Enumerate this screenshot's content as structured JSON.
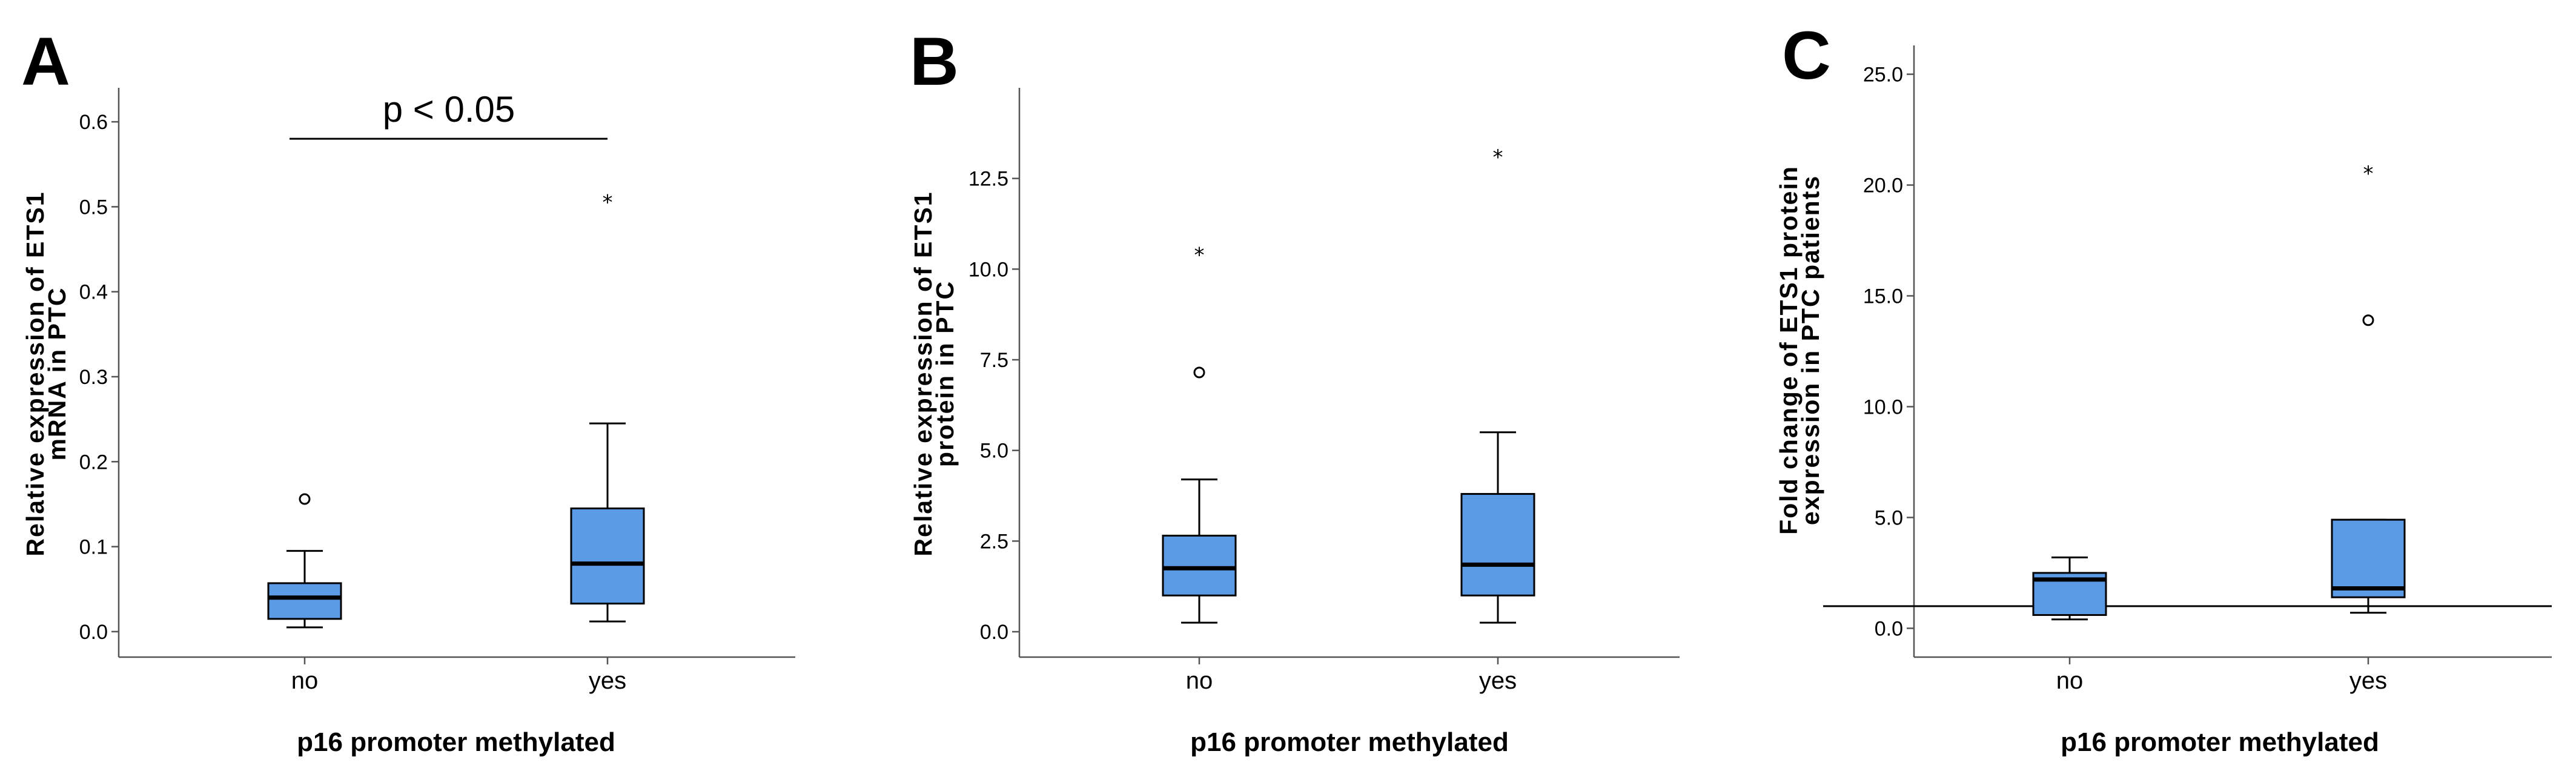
{
  "chart_data": [
    {
      "type": "box",
      "panel_letter": "A",
      "ylabel_lines": [
        "Relative expression of ETS1",
        "mRNA in PTC"
      ],
      "xlabel": "p16 promoter methylated",
      "categories": [
        "no",
        "yes"
      ],
      "ylim": [
        -0.03,
        0.64
      ],
      "yticks": [
        0.0,
        0.1,
        0.2,
        0.3,
        0.4,
        0.5,
        0.6
      ],
      "yticklabels": [
        "0.0",
        "0.1",
        "0.2",
        "0.3",
        "0.4",
        "0.5",
        "0.6"
      ],
      "series": [
        {
          "name": "no",
          "min": 0.005,
          "q1": 0.015,
          "median": 0.04,
          "q3": 0.057,
          "max": 0.095,
          "outliers": [
            0.156
          ],
          "extremes": []
        },
        {
          "name": "yes",
          "min": 0.012,
          "q1": 0.033,
          "median": 0.08,
          "q3": 0.145,
          "max": 0.245,
          "outliers": [],
          "extremes": [
            0.51
          ]
        }
      ],
      "annotation": {
        "text": "p < 0.05",
        "y": 0.58
      },
      "reference_line": null
    },
    {
      "type": "box",
      "panel_letter": "B",
      "ylabel_lines": [
        "Relative expression of ETS1",
        "protein in PTC"
      ],
      "xlabel": "p16 promoter methylated",
      "categories": [
        "no",
        "yes"
      ],
      "ylim": [
        -0.7,
        15.0
      ],
      "yticks": [
        0.0,
        2.5,
        5.0,
        7.5,
        10.0,
        12.5
      ],
      "yticklabels": [
        "0.0",
        "2.5",
        "5.0",
        "7.5",
        "10.0",
        "12.5"
      ],
      "series": [
        {
          "name": "no",
          "min": 0.25,
          "q1": 1.0,
          "median": 1.75,
          "q3": 2.65,
          "max": 4.2,
          "outliers": [
            7.15
          ],
          "extremes": [
            10.5
          ]
        },
        {
          "name": "yes",
          "min": 0.25,
          "q1": 1.0,
          "median": 1.85,
          "q3": 3.8,
          "max": 5.5,
          "outliers": [],
          "extremes": [
            13.2
          ]
        }
      ],
      "annotation": null,
      "reference_line": null
    },
    {
      "type": "box",
      "panel_letter": "C",
      "ylabel_lines": [
        "Fold change of ETS1 protein",
        "expression in PTC patients"
      ],
      "xlabel": "p16 promoter methylated",
      "categories": [
        "no",
        "yes"
      ],
      "ylim": [
        -1.3,
        26.3
      ],
      "yticks": [
        0.0,
        5.0,
        10.0,
        15.0,
        20.0,
        25.0
      ],
      "yticklabels": [
        "0.0",
        "5.0",
        "10.0",
        "15.0",
        "20.0",
        "25.0"
      ],
      "series": [
        {
          "name": "no",
          "min": 0.4,
          "q1": 0.6,
          "median": 2.2,
          "q3": 2.5,
          "max": 3.2,
          "outliers": [],
          "extremes": []
        },
        {
          "name": "yes",
          "min": 0.7,
          "q1": 1.4,
          "median": 1.8,
          "q3": 4.9,
          "max": 4.9,
          "outliers": [
            13.9
          ],
          "extremes": [
            20.7
          ]
        }
      ],
      "annotation": null,
      "reference_line": 1.0
    }
  ]
}
